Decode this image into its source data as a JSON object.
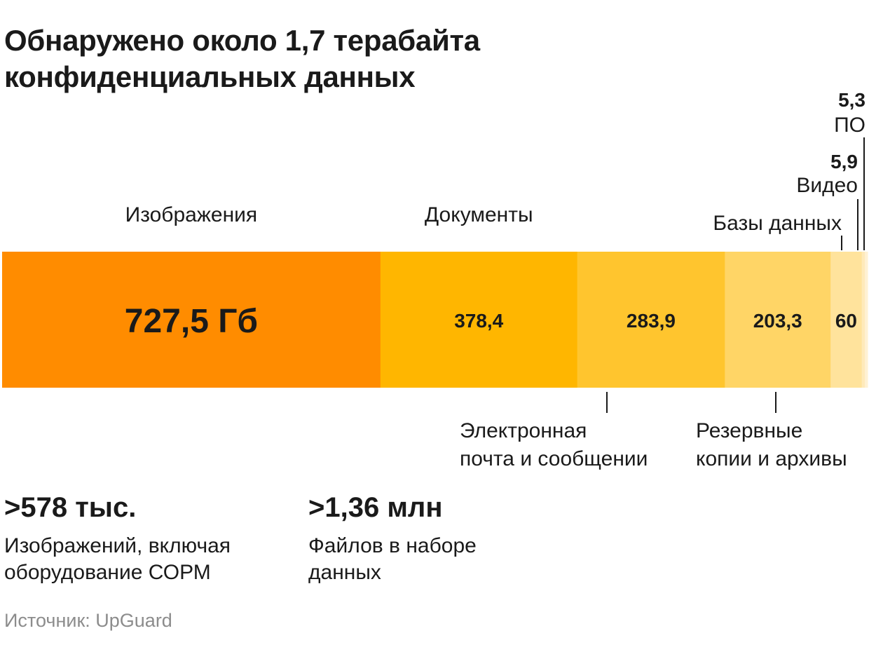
{
  "title_lines": [
    "Обнаружено около 1,7 терабайта",
    "конфиденциальных данных"
  ],
  "chart_data": {
    "type": "bar",
    "orientation": "horizontal-stacked",
    "unit": "Гб",
    "segments": [
      {
        "name": "Изображения",
        "value": 727.5,
        "value_label": "727,5 Гб",
        "color": "#ff8c00",
        "label_position": "above"
      },
      {
        "name": "Документы",
        "value": 378.4,
        "value_label": "378,4",
        "color": "#ffb600",
        "label_position": "above"
      },
      {
        "name_lines": [
          "Электронная",
          "почта и сообщении"
        ],
        "value": 283.9,
        "value_label": "283,9",
        "color": "#ffc52e",
        "label_position": "below"
      },
      {
        "name_lines": [
          "Резервные",
          "копии и архивы"
        ],
        "value": 203.3,
        "value_label": "203,3",
        "color": "#ffd566",
        "label_position": "below"
      },
      {
        "name": "Базы данных",
        "value": 60,
        "value_label": "60",
        "color": "#ffe39c",
        "label_position": "above"
      },
      {
        "name": "Видео",
        "value": 5.9,
        "value_label": "5,9",
        "color": "#ffeaba",
        "label_position": "above"
      },
      {
        "name": "ПО",
        "value": 5.3,
        "value_label": "5,3",
        "color": "#fff1d3",
        "label_position": "above"
      }
    ]
  },
  "stats": [
    {
      "value": ">578 тыс.",
      "desc_lines": [
        "Изображений, включая",
        "оборудование СОРМ"
      ]
    },
    {
      "value": ">1,36 млн",
      "desc_lines": [
        "Файлов в наборе",
        "данных"
      ]
    }
  ],
  "source": "Источник: UpGuard"
}
